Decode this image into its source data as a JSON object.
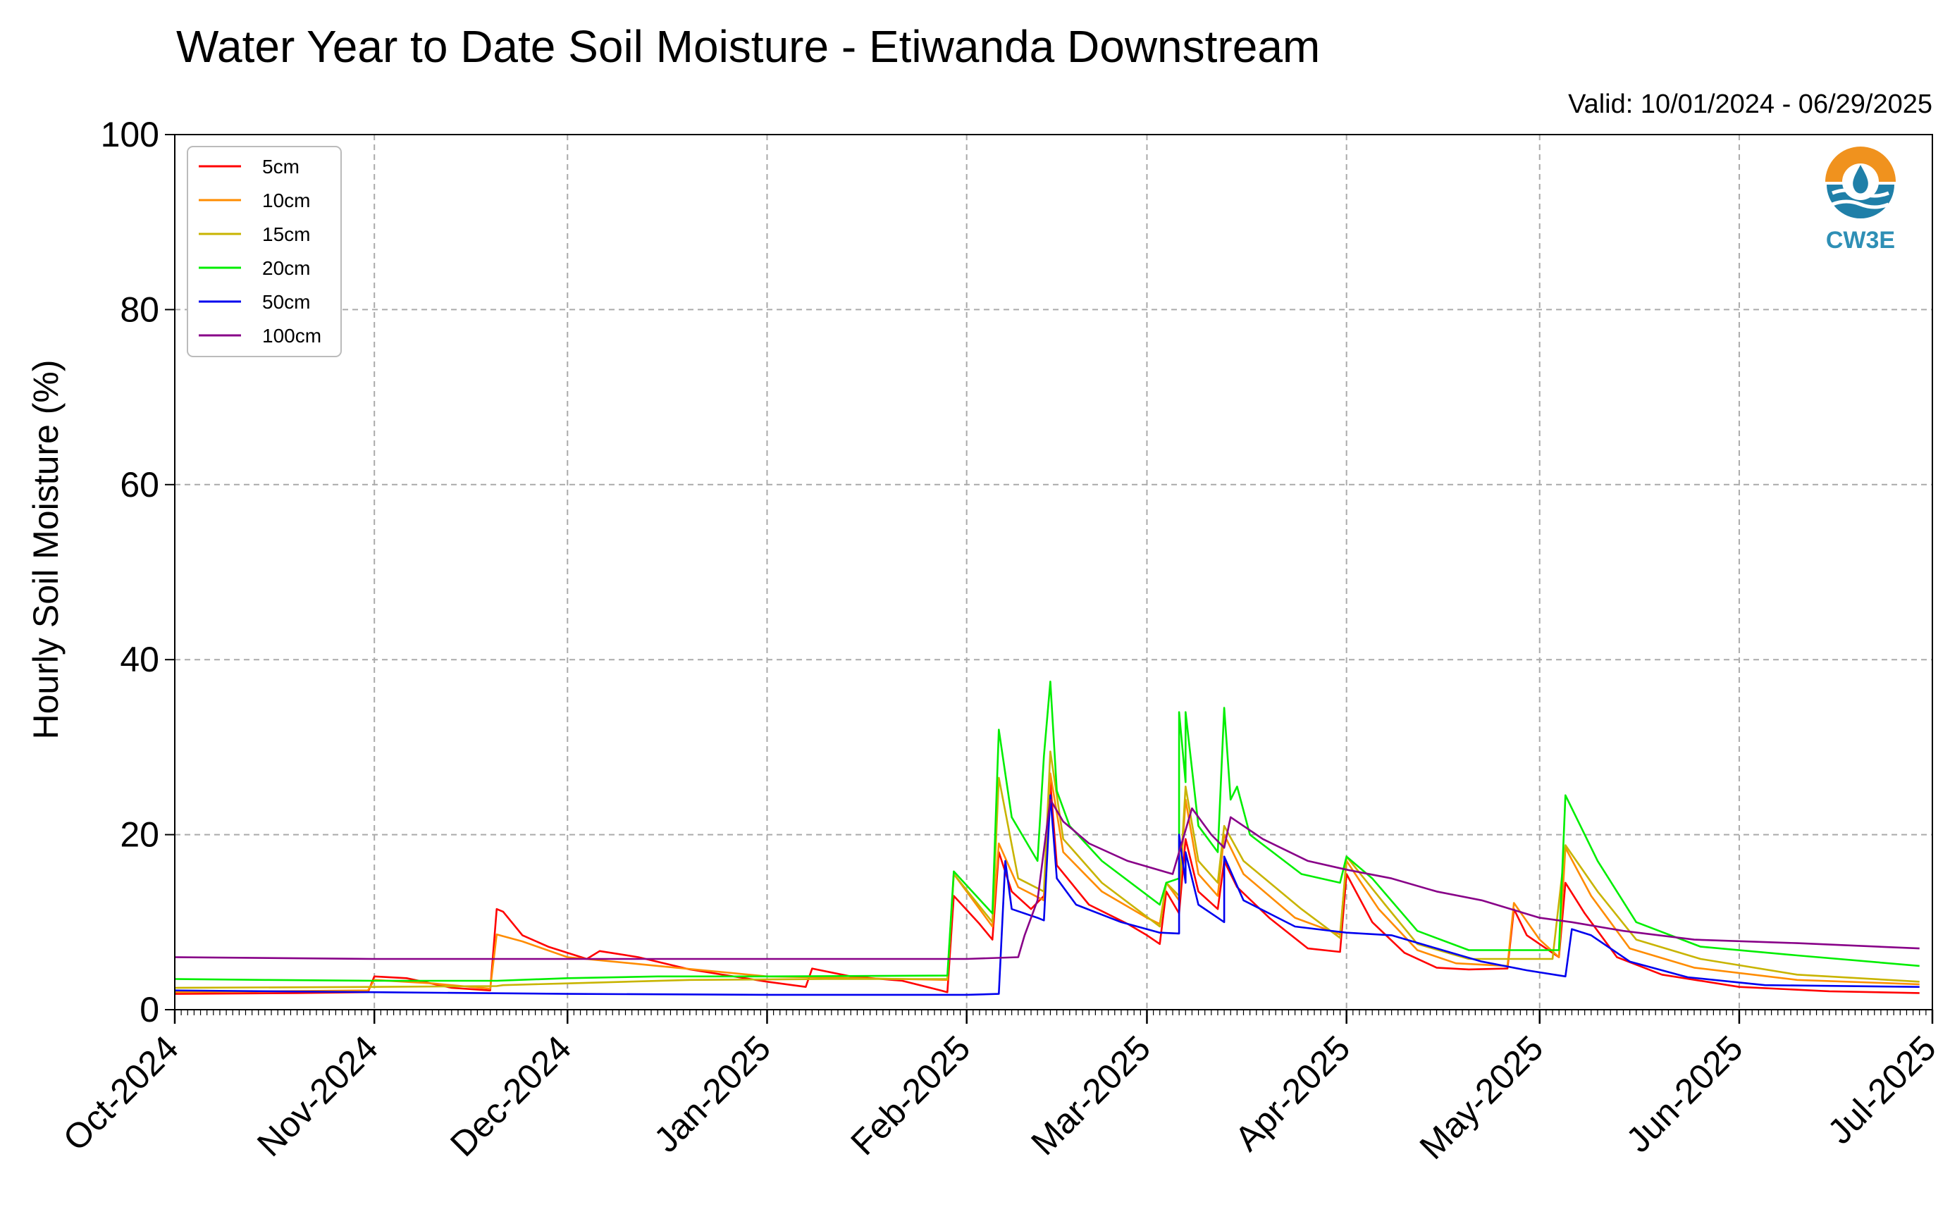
{
  "chart_data": {
    "type": "line",
    "title": "Water Year to Date Soil Moisture - Etiwanda Downstream",
    "subtitle": "Valid: 10/01/2024 - 06/29/2025",
    "xlabel": "",
    "ylabel": "Hourly Soil Moisture (%)",
    "ylim": [
      0,
      100
    ],
    "yticks": [
      "0",
      "20",
      "40",
      "60",
      "80",
      "100"
    ],
    "xlim": [
      "2024-10-01",
      "2025-07-01"
    ],
    "xticks": [
      {
        "date": "2024-10-01",
        "label": "Oct-2024"
      },
      {
        "date": "2024-11-01",
        "label": "Nov-2024"
      },
      {
        "date": "2024-12-01",
        "label": "Dec-2024"
      },
      {
        "date": "2025-01-01",
        "label": "Jan-2025"
      },
      {
        "date": "2025-02-01",
        "label": "Feb-2025"
      },
      {
        "date": "2025-03-01",
        "label": "Mar-2025"
      },
      {
        "date": "2025-04-01",
        "label": "Apr-2025"
      },
      {
        "date": "2025-05-01",
        "label": "May-2025"
      },
      {
        "date": "2025-06-01",
        "label": "Jun-2025"
      },
      {
        "date": "2025-07-01",
        "label": "Jul-2025"
      }
    ],
    "grid": true,
    "legend_position": "top-left",
    "logo_text": "CW3E",
    "series": [
      {
        "name": "5cm",
        "color": "#ff0000",
        "points": [
          [
            "2024-10-01",
            1.8
          ],
          [
            "2024-10-20",
            1.9
          ],
          [
            "2024-10-31",
            2.0
          ],
          [
            "2024-11-01",
            3.8
          ],
          [
            "2024-11-06",
            3.6
          ],
          [
            "2024-11-13",
            2.5
          ],
          [
            "2024-11-19",
            2.2
          ],
          [
            "2024-11-20",
            11.5
          ],
          [
            "2024-11-21",
            11.2
          ],
          [
            "2024-11-24",
            8.5
          ],
          [
            "2024-11-28",
            7.2
          ],
          [
            "2024-12-04",
            5.8
          ],
          [
            "2024-12-06",
            6.7
          ],
          [
            "2024-12-12",
            6.0
          ],
          [
            "2024-12-20",
            4.6
          ],
          [
            "2025-01-01",
            3.2
          ],
          [
            "2025-01-07",
            2.6
          ],
          [
            "2025-01-08",
            4.7
          ],
          [
            "2025-01-14",
            3.8
          ],
          [
            "2025-01-22",
            3.3
          ],
          [
            "2025-01-28",
            2.2
          ],
          [
            "2025-01-29",
            2.0
          ],
          [
            "2025-01-30",
            13.0
          ],
          [
            "2025-02-03",
            9.8
          ],
          [
            "2025-02-05",
            8.0
          ],
          [
            "2025-02-06",
            18.0
          ],
          [
            "2025-02-08",
            13.5
          ],
          [
            "2025-02-11",
            11.5
          ],
          [
            "2025-02-13",
            13.0
          ],
          [
            "2025-02-14",
            26.0
          ],
          [
            "2025-02-15",
            16.5
          ],
          [
            "2025-02-20",
            12.0
          ],
          [
            "2025-02-26",
            9.8
          ],
          [
            "2025-03-01",
            8.5
          ],
          [
            "2025-03-03",
            7.5
          ],
          [
            "2025-03-04",
            13.5
          ],
          [
            "2025-03-06",
            11.0
          ],
          [
            "2025-03-07",
            19.5
          ],
          [
            "2025-03-09",
            13.5
          ],
          [
            "2025-03-12",
            11.5
          ],
          [
            "2025-03-13",
            17.0
          ],
          [
            "2025-03-15",
            14.0
          ],
          [
            "2025-03-20",
            10.5
          ],
          [
            "2025-03-26",
            7.0
          ],
          [
            "2025-03-31",
            6.6
          ],
          [
            "2025-04-01",
            15.5
          ],
          [
            "2025-04-05",
            10.0
          ],
          [
            "2025-04-10",
            6.5
          ],
          [
            "2025-04-15",
            4.8
          ],
          [
            "2025-04-20",
            4.6
          ],
          [
            "2025-04-26",
            4.7
          ],
          [
            "2025-04-27",
            11.5
          ],
          [
            "2025-04-29",
            8.5
          ],
          [
            "2025-05-04",
            6.0
          ],
          [
            "2025-05-05",
            14.5
          ],
          [
            "2025-05-08",
            11.0
          ],
          [
            "2025-05-13",
            6.0
          ],
          [
            "2025-05-20",
            4.0
          ],
          [
            "2025-06-01",
            2.6
          ],
          [
            "2025-06-15",
            2.1
          ],
          [
            "2025-06-29",
            1.9
          ]
        ]
      },
      {
        "name": "10cm",
        "color": "#ff8c00",
        "points": [
          [
            "2024-10-01",
            2.0
          ],
          [
            "2024-10-31",
            2.2
          ],
          [
            "2024-11-01",
            3.4
          ],
          [
            "2024-11-10",
            3.0
          ],
          [
            "2024-11-19",
            2.4
          ],
          [
            "2024-11-20",
            8.6
          ],
          [
            "2024-11-24",
            7.8
          ],
          [
            "2024-12-01",
            6.0
          ],
          [
            "2024-12-15",
            5.0
          ],
          [
            "2025-01-01",
            3.8
          ],
          [
            "2025-01-15",
            3.6
          ],
          [
            "2025-01-29",
            3.4
          ],
          [
            "2025-01-30",
            15.5
          ],
          [
            "2025-02-04",
            10.5
          ],
          [
            "2025-02-05",
            9.5
          ],
          [
            "2025-02-06",
            19.0
          ],
          [
            "2025-02-09",
            14.0
          ],
          [
            "2025-02-13",
            12.5
          ],
          [
            "2025-02-14",
            27.0
          ],
          [
            "2025-02-16",
            18.0
          ],
          [
            "2025-02-22",
            13.5
          ],
          [
            "2025-03-01",
            10.5
          ],
          [
            "2025-03-03",
            9.8
          ],
          [
            "2025-03-04",
            14.5
          ],
          [
            "2025-03-06",
            12.5
          ],
          [
            "2025-03-07",
            24.0
          ],
          [
            "2025-03-09",
            15.5
          ],
          [
            "2025-03-12",
            13.0
          ],
          [
            "2025-03-13",
            20.0
          ],
          [
            "2025-03-16",
            15.5
          ],
          [
            "2025-03-24",
            10.5
          ],
          [
            "2025-03-31",
            8.6
          ],
          [
            "2025-04-01",
            17.0
          ],
          [
            "2025-04-06",
            11.5
          ],
          [
            "2025-04-12",
            6.8
          ],
          [
            "2025-04-18",
            5.3
          ],
          [
            "2025-04-26",
            5.0
          ],
          [
            "2025-04-27",
            12.2
          ],
          [
            "2025-05-01",
            8.0
          ],
          [
            "2025-05-04",
            6.0
          ],
          [
            "2025-05-05",
            18.5
          ],
          [
            "2025-05-09",
            13.0
          ],
          [
            "2025-05-15",
            7.0
          ],
          [
            "2025-05-25",
            4.8
          ],
          [
            "2025-06-10",
            3.4
          ],
          [
            "2025-06-29",
            2.9
          ]
        ]
      },
      {
        "name": "15cm",
        "color": "#c8b400",
        "points": [
          [
            "2024-10-01",
            2.5
          ],
          [
            "2024-11-01",
            2.6
          ],
          [
            "2024-11-20",
            2.7
          ],
          [
            "2024-11-21",
            2.8
          ],
          [
            "2024-12-01",
            3.0
          ],
          [
            "2024-12-20",
            3.4
          ],
          [
            "2025-01-10",
            3.5
          ],
          [
            "2025-01-29",
            3.5
          ],
          [
            "2025-01-30",
            15.5
          ],
          [
            "2025-02-05",
            10.0
          ],
          [
            "2025-02-06",
            26.5
          ],
          [
            "2025-02-09",
            15.0
          ],
          [
            "2025-02-13",
            13.5
          ],
          [
            "2025-02-14",
            29.5
          ],
          [
            "2025-02-16",
            19.5
          ],
          [
            "2025-02-22",
            14.5
          ],
          [
            "2025-03-03",
            9.5
          ],
          [
            "2025-03-04",
            14.5
          ],
          [
            "2025-03-06",
            13.0
          ],
          [
            "2025-03-07",
            25.5
          ],
          [
            "2025-03-09",
            17.0
          ],
          [
            "2025-03-12",
            14.5
          ],
          [
            "2025-03-13",
            21.0
          ],
          [
            "2025-03-16",
            17.0
          ],
          [
            "2025-03-25",
            11.5
          ],
          [
            "2025-03-31",
            8.2
          ],
          [
            "2025-04-01",
            17.5
          ],
          [
            "2025-04-07",
            12.0
          ],
          [
            "2025-04-12",
            7.5
          ],
          [
            "2025-04-20",
            5.8
          ],
          [
            "2025-04-27",
            5.8
          ],
          [
            "2025-05-03",
            5.8
          ],
          [
            "2025-05-05",
            18.8
          ],
          [
            "2025-05-10",
            13.5
          ],
          [
            "2025-05-16",
            8.0
          ],
          [
            "2025-05-26",
            5.8
          ],
          [
            "2025-06-10",
            4.0
          ],
          [
            "2025-06-29",
            3.2
          ]
        ]
      },
      {
        "name": "20cm",
        "color": "#00ee00",
        "points": [
          [
            "2024-10-01",
            3.5
          ],
          [
            "2024-10-15",
            3.4
          ],
          [
            "2024-11-01",
            3.3
          ],
          [
            "2024-11-20",
            3.3
          ],
          [
            "2024-12-01",
            3.6
          ],
          [
            "2024-12-15",
            3.8
          ],
          [
            "2025-01-01",
            3.8
          ],
          [
            "2025-01-29",
            3.9
          ],
          [
            "2025-01-30",
            15.8
          ],
          [
            "2025-02-05",
            11.0
          ],
          [
            "2025-02-06",
            32.0
          ],
          [
            "2025-02-08",
            22.0
          ],
          [
            "2025-02-12",
            17.0
          ],
          [
            "2025-02-13",
            29.0
          ],
          [
            "2025-02-14",
            37.5
          ],
          [
            "2025-02-15",
            25.0
          ],
          [
            "2025-02-17",
            21.0
          ],
          [
            "2025-02-22",
            17.0
          ],
          [
            "2025-03-03",
            12.0
          ],
          [
            "2025-03-04",
            14.5
          ],
          [
            "2025-03-06",
            15.0
          ],
          [
            "2025-03-06",
            34.0
          ],
          [
            "2025-03-07",
            26.0
          ],
          [
            "2025-03-07",
            34.0
          ],
          [
            "2025-03-09",
            21.0
          ],
          [
            "2025-03-12",
            18.0
          ],
          [
            "2025-03-13",
            34.5
          ],
          [
            "2025-03-14",
            24.0
          ],
          [
            "2025-03-15",
            25.5
          ],
          [
            "2025-03-17",
            20.0
          ],
          [
            "2025-03-25",
            15.5
          ],
          [
            "2025-03-31",
            14.5
          ],
          [
            "2025-04-01",
            17.5
          ],
          [
            "2025-04-05",
            15.0
          ],
          [
            "2025-04-12",
            9.0
          ],
          [
            "2025-04-20",
            6.8
          ],
          [
            "2025-04-27",
            6.8
          ],
          [
            "2025-05-04",
            6.8
          ],
          [
            "2025-05-05",
            24.5
          ],
          [
            "2025-05-10",
            17.0
          ],
          [
            "2025-05-16",
            10.0
          ],
          [
            "2025-05-26",
            7.2
          ],
          [
            "2025-06-10",
            6.2
          ],
          [
            "2025-06-29",
            5.0
          ]
        ]
      },
      {
        "name": "50cm",
        "color": "#0000ee",
        "points": [
          [
            "2024-10-01",
            2.2
          ],
          [
            "2024-11-01",
            2.0
          ],
          [
            "2024-12-01",
            1.8
          ],
          [
            "2025-01-01",
            1.7
          ],
          [
            "2025-02-01",
            1.7
          ],
          [
            "2025-02-06",
            1.8
          ],
          [
            "2025-02-07",
            17.0
          ],
          [
            "2025-02-08",
            11.5
          ],
          [
            "2025-02-12",
            10.5
          ],
          [
            "2025-02-13",
            10.2
          ],
          [
            "2025-02-14",
            24.5
          ],
          [
            "2025-02-15",
            15.0
          ],
          [
            "2025-02-18",
            12.0
          ],
          [
            "2025-02-25",
            10.0
          ],
          [
            "2025-03-03",
            8.8
          ],
          [
            "2025-03-06",
            8.7
          ],
          [
            "2025-03-06",
            20.0
          ],
          [
            "2025-03-07",
            14.5
          ],
          [
            "2025-03-07",
            18.0
          ],
          [
            "2025-03-09",
            12.0
          ],
          [
            "2025-03-12",
            10.5
          ],
          [
            "2025-03-13",
            10.0
          ],
          [
            "2025-03-13",
            17.5
          ],
          [
            "2025-03-16",
            12.5
          ],
          [
            "2025-03-24",
            9.5
          ],
          [
            "2025-04-01",
            8.8
          ],
          [
            "2025-04-08",
            8.5
          ],
          [
            "2025-04-15",
            7.0
          ],
          [
            "2025-04-22",
            5.5
          ],
          [
            "2025-04-29",
            4.5
          ],
          [
            "2025-05-05",
            3.8
          ],
          [
            "2025-05-06",
            9.2
          ],
          [
            "2025-05-09",
            8.5
          ],
          [
            "2025-05-15",
            5.5
          ],
          [
            "2025-05-24",
            3.7
          ],
          [
            "2025-06-05",
            2.8
          ],
          [
            "2025-06-29",
            2.6
          ]
        ]
      },
      {
        "name": "100cm",
        "color": "#880088",
        "points": [
          [
            "2024-10-01",
            6.0
          ],
          [
            "2024-11-01",
            5.8
          ],
          [
            "2024-12-01",
            5.8
          ],
          [
            "2025-01-01",
            5.8
          ],
          [
            "2025-02-01",
            5.8
          ],
          [
            "2025-02-09",
            6.0
          ],
          [
            "2025-02-10",
            8.5
          ],
          [
            "2025-02-12",
            12.5
          ],
          [
            "2025-02-14",
            24.0
          ],
          [
            "2025-02-16",
            21.5
          ],
          [
            "2025-02-20",
            19.0
          ],
          [
            "2025-02-26",
            17.0
          ],
          [
            "2025-03-05",
            15.5
          ],
          [
            "2025-03-08",
            23.0
          ],
          [
            "2025-03-11",
            20.0
          ],
          [
            "2025-03-13",
            18.5
          ],
          [
            "2025-03-14",
            22.0
          ],
          [
            "2025-03-19",
            19.5
          ],
          [
            "2025-03-26",
            17.0
          ],
          [
            "2025-04-01",
            16.0
          ],
          [
            "2025-04-08",
            15.0
          ],
          [
            "2025-04-15",
            13.5
          ],
          [
            "2025-04-22",
            12.5
          ],
          [
            "2025-05-01",
            10.5
          ],
          [
            "2025-05-06",
            10.0
          ],
          [
            "2025-05-14",
            9.0
          ],
          [
            "2025-05-25",
            8.0
          ],
          [
            "2025-06-10",
            7.6
          ],
          [
            "2025-06-29",
            7.0
          ]
        ]
      }
    ]
  }
}
